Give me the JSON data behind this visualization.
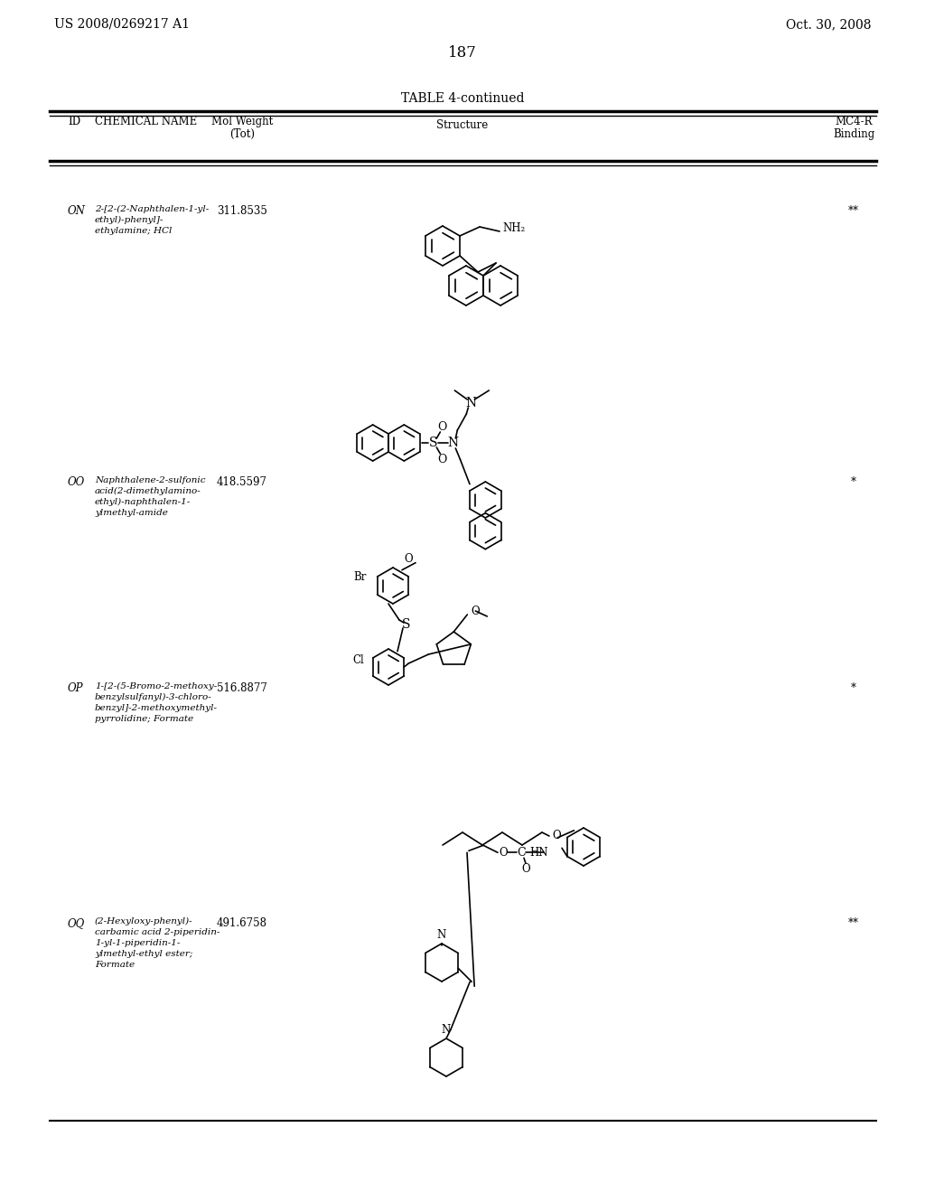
{
  "page_left": "US 2008/0269217 A1",
  "page_right": "Oct. 30, 2008",
  "page_number": "187",
  "table_title": "TABLE 4-continued",
  "background_color": "#ffffff",
  "text_color": "#000000",
  "rows": [
    {
      "id": "ON",
      "name": "2-[2-(2-Naphthalen-1-yl-\nethyl)-phenyl]-\nethylamine; HCl",
      "mol_weight": "311.8535",
      "binding": "**"
    },
    {
      "id": "OO",
      "name": "Naphthalene-2-sulfonic\nacid(2-dimethylamino-\nethyl)-naphthalen-1-\nylmethyl-amide",
      "mol_weight": "418.5597",
      "binding": "*"
    },
    {
      "id": "OP",
      "name": "1-[2-(5-Bromo-2-methoxy-\nbenzylsulfanyl)-3-chloro-\nbenzyl]-2-methoxymethyl-\npyrrolidine; Formate",
      "mol_weight": "516.8877",
      "binding": "*"
    },
    {
      "id": "OQ",
      "name": "(2-Hexyloxy-phenyl)-\ncarbamic acid 2-piperidin-\n1-yl-1-piperidin-1-\nylmethyl-ethyl ester;\nFormate",
      "mol_weight": "491.6758",
      "binding": "**"
    }
  ]
}
